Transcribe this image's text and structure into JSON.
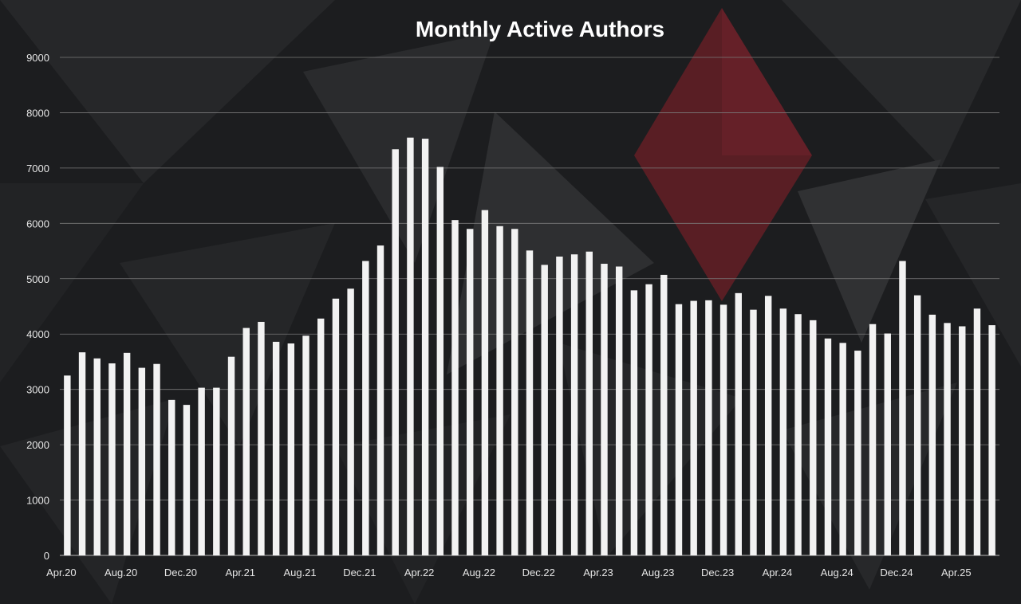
{
  "chart_data": {
    "type": "bar",
    "title": "Monthly Active Authors",
    "xlabel": "",
    "ylabel": "",
    "ylim": [
      0,
      9000
    ],
    "yticks": [
      0,
      1000,
      2000,
      3000,
      4000,
      5000,
      6000,
      7000,
      8000,
      9000
    ],
    "grid": true,
    "legend": "none",
    "categories": [
      "Apr.20",
      "May.20",
      "Jun.20",
      "Jul.20",
      "Aug.20",
      "Sep.20",
      "Oct.20",
      "Nov.20",
      "Dec.20",
      "Jan.21",
      "Feb.21",
      "Mar.21",
      "Apr.21",
      "May.21",
      "Jun.21",
      "Jul.21",
      "Aug.21",
      "Sep.21",
      "Oct.21",
      "Nov.21",
      "Dec.21",
      "Jan.22",
      "Feb.22",
      "Mar.22",
      "Apr.22",
      "May.22",
      "Jun.22",
      "Jul.22",
      "Aug.22",
      "Sep.22",
      "Oct.22",
      "Nov.22",
      "Dec.22",
      "Jan.23",
      "Feb.23",
      "Mar.23",
      "Apr.23",
      "May.23",
      "Jun.23",
      "Jul.23",
      "Aug.23",
      "Sep.23",
      "Oct.23",
      "Nov.23",
      "Dec.23",
      "Jan.24",
      "Feb.24",
      "Mar.24",
      "Apr.24",
      "May.24",
      "Jun.24",
      "Jul.24",
      "Aug.24",
      "Sep.24",
      "Oct.24",
      "Nov.24",
      "Dec.24",
      "Jan.25",
      "Feb.25",
      "Mar.25",
      "Apr.25",
      "May.25",
      "Jun.25"
    ],
    "tick_labels": [
      "Apr.20",
      "Aug.20",
      "Dec.20",
      "Apr.21",
      "Aug.21",
      "Dec.21",
      "Apr.22",
      "Aug.22",
      "Dec.22",
      "Apr.23",
      "Aug.23",
      "Dec.23",
      "Apr.24",
      "Aug.24",
      "Dec.24",
      "Apr.25"
    ],
    "values": [
      3250,
      3670,
      3560,
      3470,
      3660,
      3390,
      3460,
      2810,
      2720,
      3030,
      3030,
      3590,
      4110,
      4220,
      3860,
      3830,
      3970,
      4280,
      4640,
      4820,
      5320,
      5600,
      7340,
      7550,
      7530,
      7020,
      6060,
      5900,
      6240,
      5950,
      5900,
      5510,
      5250,
      5400,
      5440,
      5490,
      5270,
      5220,
      4790,
      4900,
      5070,
      4540,
      4600,
      4610,
      4530,
      4740,
      4440,
      4690,
      4460,
      4360,
      4250,
      3920,
      3840,
      3700,
      4180,
      4010,
      5320,
      4700,
      4350,
      4200,
      4140,
      4460,
      4160
    ],
    "colors": {
      "bar": "#f2f2f2",
      "grid": "#7a7a7a",
      "background": "#1c1d1f",
      "accent_diamond": "#6e1f27"
    }
  }
}
